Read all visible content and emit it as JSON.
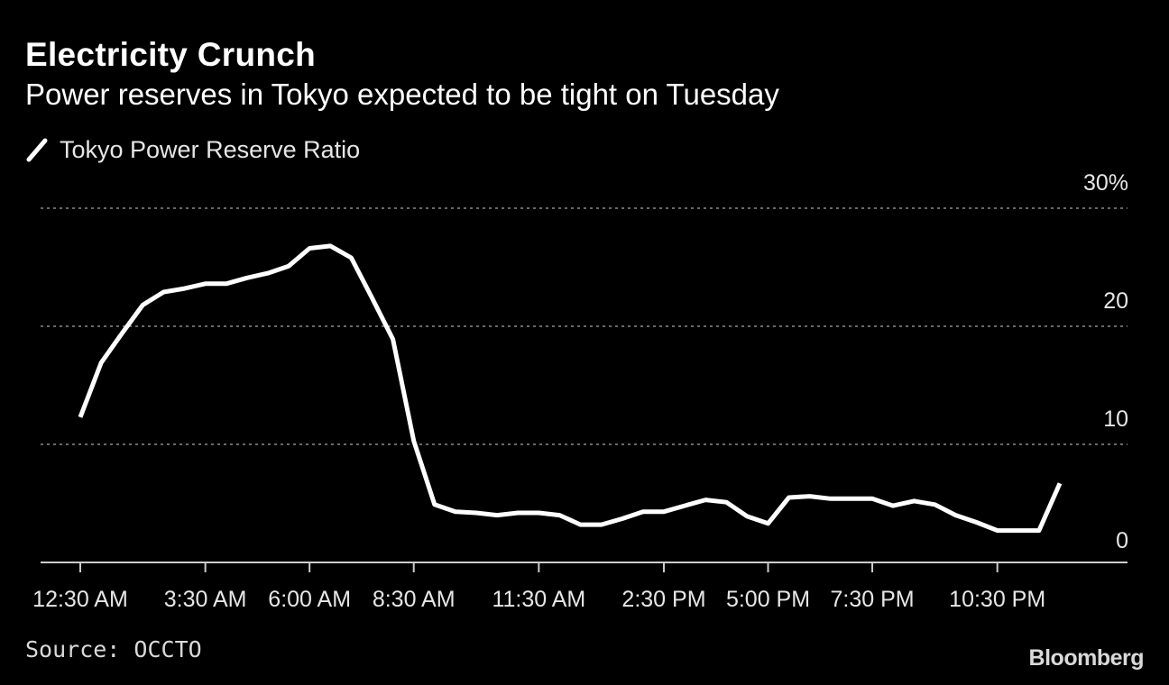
{
  "header": {
    "title": "Electricity Crunch",
    "subtitle": "Power reserves in Tokyo expected to be tight on Tuesday"
  },
  "legend": {
    "label": "Tokyo Power Reserve Ratio"
  },
  "footer": {
    "source": "Source: OCCTO",
    "brand": "Bloomberg"
  },
  "colors": {
    "background": "#000000",
    "line": "#ffffff",
    "grid": "#8c8c8c",
    "text": "#ffffff"
  },
  "chart_data": {
    "type": "line",
    "title": "Electricity Crunch",
    "subtitle": "Power reserves in Tokyo expected to be tight on Tuesday",
    "xlabel": "",
    "ylabel": "",
    "ylim": [
      0,
      30
    ],
    "yticks": [
      0,
      10,
      20,
      30
    ],
    "ytick_labels": [
      "0",
      "10",
      "20",
      "30%"
    ],
    "grid": true,
    "legend_position": "top-left",
    "x": [
      "12:30 AM",
      "1:00 AM",
      "1:30 AM",
      "2:00 AM",
      "2:30 AM",
      "3:00 AM",
      "3:30 AM",
      "4:00 AM",
      "4:30 AM",
      "5:00 AM",
      "5:30 AM",
      "6:00 AM",
      "6:30 AM",
      "7:00 AM",
      "7:30 AM",
      "8:00 AM",
      "8:30 AM",
      "9:00 AM",
      "9:30 AM",
      "10:00 AM",
      "10:30 AM",
      "11:00 AM",
      "11:30 AM",
      "12:00 PM",
      "12:30 PM",
      "1:00 PM",
      "1:30 PM",
      "2:00 PM",
      "2:30 PM",
      "3:00 PM",
      "3:30 PM",
      "4:00 PM",
      "4:30 PM",
      "5:00 PM",
      "5:30 PM",
      "6:00 PM",
      "6:30 PM",
      "7:00 PM",
      "7:30 PM",
      "8:00 PM",
      "8:30 PM",
      "9:00 PM",
      "9:30 PM",
      "10:00 PM",
      "10:30 PM",
      "11:00 PM",
      "11:30 PM",
      "12:00 AM"
    ],
    "xtick_labels": [
      "12:30 AM",
      "3:30 AM",
      "6:00 AM",
      "8:30 AM",
      "11:30 AM",
      "2:30 PM",
      "5:00 PM",
      "7:30 PM",
      "10:30 PM"
    ],
    "xtick_indices": [
      0,
      6,
      11,
      16,
      22,
      28,
      33,
      38,
      44
    ],
    "series": [
      {
        "name": "Tokyo Power Reserve Ratio",
        "values": [
          12.3,
          16.9,
          19.4,
          21.8,
          22.9,
          23.2,
          23.6,
          23.6,
          24.1,
          24.5,
          25.1,
          26.6,
          26.8,
          25.8,
          22.4,
          18.9,
          10.3,
          4.9,
          4.3,
          4.2,
          4.0,
          4.2,
          4.2,
          4.0,
          3.2,
          3.2,
          3.7,
          4.3,
          4.3,
          4.8,
          5.3,
          5.1,
          3.9,
          3.3,
          5.5,
          5.6,
          5.4,
          5.4,
          5.4,
          4.8,
          5.2,
          4.9,
          4.0,
          3.4,
          2.7,
          2.7,
          2.7,
          6.7
        ]
      }
    ]
  }
}
